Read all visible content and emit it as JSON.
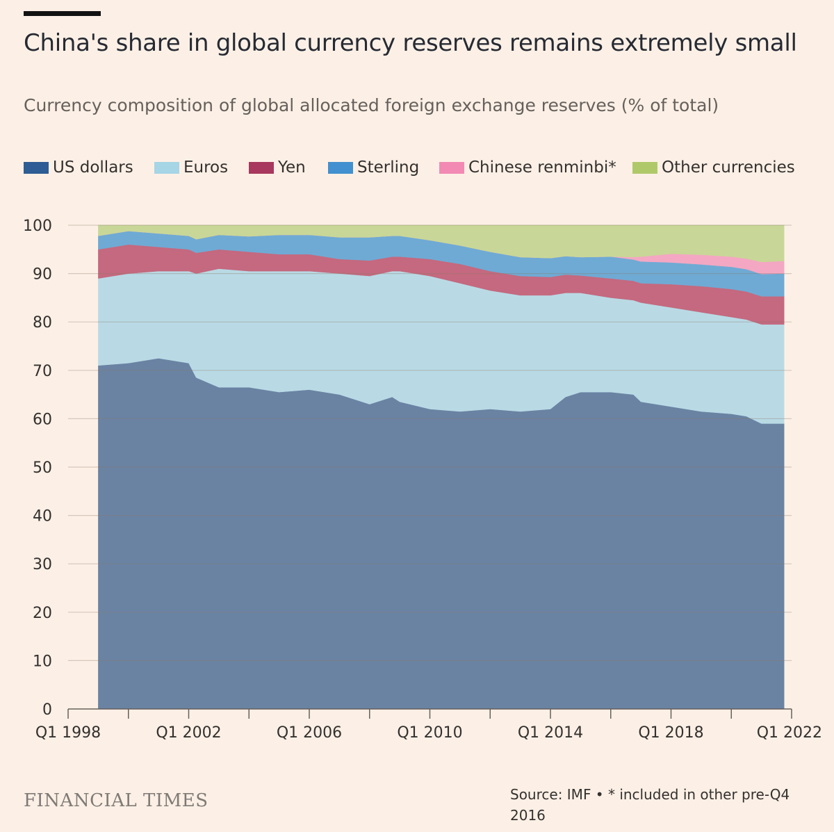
{
  "header": {
    "title": "China's share in global currency reserves remains extremely small",
    "subtitle": "Currency composition of global allocated foreign exchange reserves (% of total)"
  },
  "footer": {
    "brand": "FINANCIAL TIMES",
    "source": "Source: IMF • * included in other pre-Q4 2016"
  },
  "colors": {
    "background": "#fcf0e6",
    "gridline": "#e6d9ce",
    "axis": "#66605c"
  },
  "chart_data": {
    "type": "area",
    "stacked": true,
    "title": "China's share in global currency reserves remains extremely small",
    "subtitle": "Currency composition of global allocated foreign exchange reserves (% of total)",
    "xlabel": "",
    "ylabel": "",
    "xlim": [
      1998.0,
      2022.0
    ],
    "ylim": [
      0,
      100
    ],
    "yticks": [
      0,
      10,
      20,
      30,
      40,
      50,
      60,
      70,
      80,
      90,
      100
    ],
    "xticks": [
      {
        "value": 1998,
        "label": "Q1 1998"
      },
      {
        "value": 2000,
        "label": ""
      },
      {
        "value": 2002,
        "label": "Q1 2002"
      },
      {
        "value": 2004,
        "label": ""
      },
      {
        "value": 2006,
        "label": "Q1 2006"
      },
      {
        "value": 2008,
        "label": ""
      },
      {
        "value": 2010,
        "label": "Q1 2010"
      },
      {
        "value": 2012,
        "label": ""
      },
      {
        "value": 2014,
        "label": "Q1 2014"
      },
      {
        "value": 2016,
        "label": ""
      },
      {
        "value": 2018,
        "label": "Q1 2018"
      },
      {
        "value": 2020,
        "label": ""
      },
      {
        "value": 2022,
        "label": "Q1 2022"
      }
    ],
    "grid": true,
    "legend_position": "top",
    "x": [
      1999.0,
      2000.0,
      2001.0,
      2002.0,
      2002.25,
      2003.0,
      2004.0,
      2005.0,
      2006.0,
      2007.0,
      2008.0,
      2008.75,
      2009.0,
      2010.0,
      2011.0,
      2012.0,
      2013.0,
      2014.0,
      2014.5,
      2015.0,
      2016.0,
      2016.75,
      2017.0,
      2018.0,
      2019.0,
      2020.0,
      2020.5,
      2021.0,
      2021.75
    ],
    "series": [
      {
        "name": "US dollars",
        "color": "#6a83a3",
        "values": [
          71.0,
          71.5,
          72.5,
          71.5,
          68.5,
          66.5,
          66.5,
          65.5,
          66.0,
          65.0,
          63.0,
          64.5,
          63.5,
          62.0,
          61.5,
          62.0,
          61.5,
          62.0,
          64.5,
          65.5,
          65.5,
          65.0,
          63.5,
          62.5,
          61.5,
          61.0,
          60.5,
          59.0,
          59.0
        ]
      },
      {
        "name": "Euros",
        "color": "#b9dae5",
        "values": [
          18.0,
          18.5,
          18.0,
          19.0,
          21.5,
          24.5,
          24.0,
          25.0,
          24.5,
          25.0,
          26.5,
          26.0,
          27.0,
          27.5,
          26.5,
          24.5,
          24.0,
          23.5,
          21.5,
          20.5,
          19.5,
          19.5,
          20.5,
          20.5,
          20.5,
          20.0,
          20.0,
          20.5,
          20.5
        ]
      },
      {
        "name": "Yen",
        "color": "#c4697f",
        "values": [
          6.0,
          6.0,
          5.0,
          4.5,
          4.3,
          4.0,
          4.0,
          3.5,
          3.5,
          3.0,
          3.2,
          3.0,
          3.0,
          3.5,
          4.0,
          4.0,
          4.0,
          3.8,
          3.8,
          3.6,
          4.0,
          4.0,
          4.0,
          4.8,
          5.4,
          5.8,
          5.8,
          5.8,
          5.8
        ]
      },
      {
        "name": "Sterling",
        "color": "#6faad4",
        "values": [
          2.8,
          2.8,
          2.8,
          2.8,
          2.8,
          3.0,
          3.2,
          4.0,
          4.0,
          4.5,
          4.8,
          4.3,
          4.3,
          3.9,
          3.8,
          4.0,
          3.9,
          3.9,
          3.8,
          3.8,
          4.5,
          4.4,
          4.5,
          4.5,
          4.5,
          4.6,
          4.6,
          4.6,
          4.7
        ]
      },
      {
        "name": "Chinese renminbi*",
        "color": "#f4a7c2",
        "values": [
          0.0,
          0.0,
          0.0,
          0.0,
          0.0,
          0.0,
          0.0,
          0.0,
          0.0,
          0.0,
          0.0,
          0.0,
          0.0,
          0.0,
          0.0,
          0.0,
          0.0,
          0.0,
          0.0,
          0.0,
          0.0,
          0.5,
          1.0,
          1.8,
          2.0,
          2.1,
          2.2,
          2.5,
          2.6
        ]
      },
      {
        "name": "Other currencies",
        "color": "#c8d797",
        "values": [
          2.2,
          1.2,
          1.7,
          2.2,
          2.9,
          2.0,
          2.3,
          2.0,
          2.0,
          2.5,
          2.5,
          2.2,
          2.2,
          3.1,
          4.2,
          5.5,
          6.6,
          6.8,
          6.4,
          6.6,
          6.5,
          6.6,
          6.5,
          5.9,
          6.1,
          6.5,
          6.9,
          7.6,
          7.4
        ]
      }
    ]
  }
}
